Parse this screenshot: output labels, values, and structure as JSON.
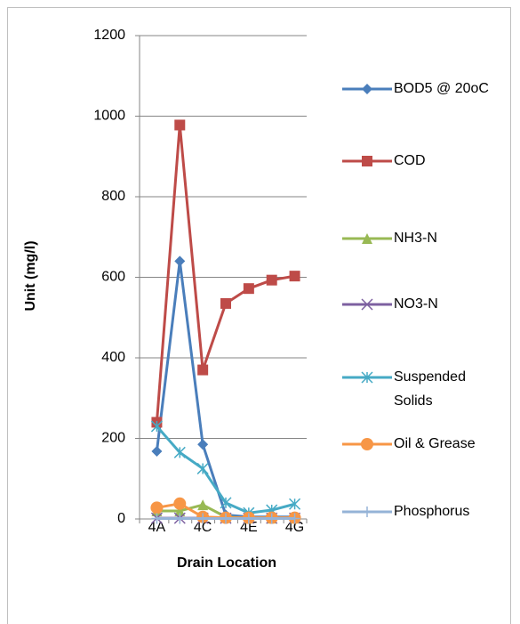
{
  "chart_data": {
    "type": "line",
    "x_label": "Drain Location",
    "y_label": "Unit (mg/l)",
    "categories": [
      "4A",
      null,
      "4C",
      null,
      "4E",
      null,
      "4G"
    ],
    "ylim": [
      0,
      1200
    ],
    "yticks": [
      0,
      200,
      400,
      600,
      800,
      1000,
      1200
    ],
    "grid": true,
    "legend": "right",
    "series": [
      {
        "name": "BOD5  @ 20oC",
        "color": "#4a7ebb",
        "marker": "diamond",
        "values": [
          168,
          640,
          185,
          10,
          5,
          5,
          5
        ]
      },
      {
        "name": "COD",
        "color": "#be4b48",
        "marker": "square",
        "values": [
          240,
          978,
          370,
          535,
          572,
          593,
          603
        ]
      },
      {
        "name": "NH3-N",
        "color": "#98b954",
        "marker": "triangle",
        "values": [
          20,
          20,
          35,
          5,
          2,
          2,
          2
        ]
      },
      {
        "name": "NO3-N",
        "color": "#7d60a0",
        "marker": "x",
        "values": [
          2,
          2,
          2,
          2,
          2,
          2,
          2
        ]
      },
      {
        "name": "Suspended Solids",
        "color": "#46aac5",
        "marker": "star",
        "values": [
          230,
          165,
          125,
          40,
          15,
          22,
          37
        ]
      },
      {
        "name": "Oil & Grease",
        "color": "#f79646",
        "marker": "circle",
        "values": [
          28,
          38,
          5,
          3,
          3,
          3,
          3
        ]
      },
      {
        "name": "Phosphorus",
        "color": "#95b3d7",
        "marker": "plus",
        "values": [
          1,
          1,
          1,
          1,
          1,
          1,
          1
        ]
      }
    ]
  }
}
